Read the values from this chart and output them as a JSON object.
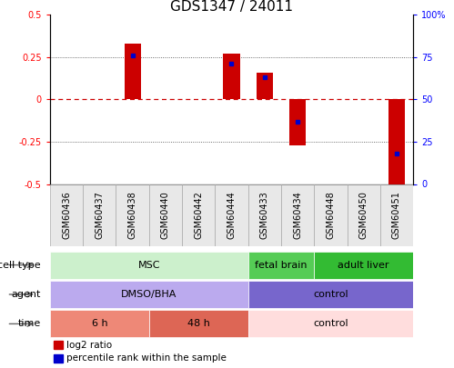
{
  "title": "GDS1347 / 24011",
  "samples": [
    "GSM60436",
    "GSM60437",
    "GSM60438",
    "GSM60440",
    "GSM60442",
    "GSM60444",
    "GSM60433",
    "GSM60434",
    "GSM60448",
    "GSM60450",
    "GSM60451"
  ],
  "log2_ratio": [
    0.0,
    0.0,
    0.33,
    0.0,
    0.0,
    0.27,
    0.16,
    -0.27,
    0.0,
    0.0,
    -0.5
  ],
  "percentile_rank": [
    null,
    null,
    76,
    null,
    null,
    71,
    63,
    37,
    null,
    null,
    18
  ],
  "ylim": [
    -0.5,
    0.5
  ],
  "y2lim": [
    0,
    100
  ],
  "cell_type_groups": [
    {
      "label": "MSC",
      "start": 0,
      "end": 5,
      "color": "#ccf0cc"
    },
    {
      "label": "fetal brain",
      "start": 6,
      "end": 7,
      "color": "#55cc55"
    },
    {
      "label": "adult liver",
      "start": 8,
      "end": 10,
      "color": "#33bb33"
    }
  ],
  "agent_groups": [
    {
      "label": "DMSO/BHA",
      "start": 0,
      "end": 5,
      "color": "#bbaaee"
    },
    {
      "label": "control",
      "start": 6,
      "end": 10,
      "color": "#7766cc"
    }
  ],
  "time_groups": [
    {
      "label": "6 h",
      "start": 0,
      "end": 2,
      "color": "#ee8877"
    },
    {
      "label": "48 h",
      "start": 3,
      "end": 5,
      "color": "#dd6655"
    },
    {
      "label": "control",
      "start": 6,
      "end": 10,
      "color": "#ffdddd"
    }
  ],
  "bar_color": "#cc0000",
  "dot_color": "#0000cc",
  "zero_line_color": "#cc0000",
  "grid_color": "#444444",
  "title_fontsize": 11,
  "tick_fontsize": 7,
  "label_fontsize": 8,
  "row_label_fontsize": 8,
  "yticks_left": [
    -0.5,
    -0.25,
    0,
    0.25,
    0.5
  ],
  "yticks_left_labels": [
    "-0.5",
    "-0.25",
    "0",
    "0.25",
    "0.5"
  ],
  "yticks_right": [
    0,
    25,
    50,
    75,
    100
  ],
  "yticks_right_labels": [
    "0",
    "25",
    "50",
    "75",
    "100%"
  ]
}
